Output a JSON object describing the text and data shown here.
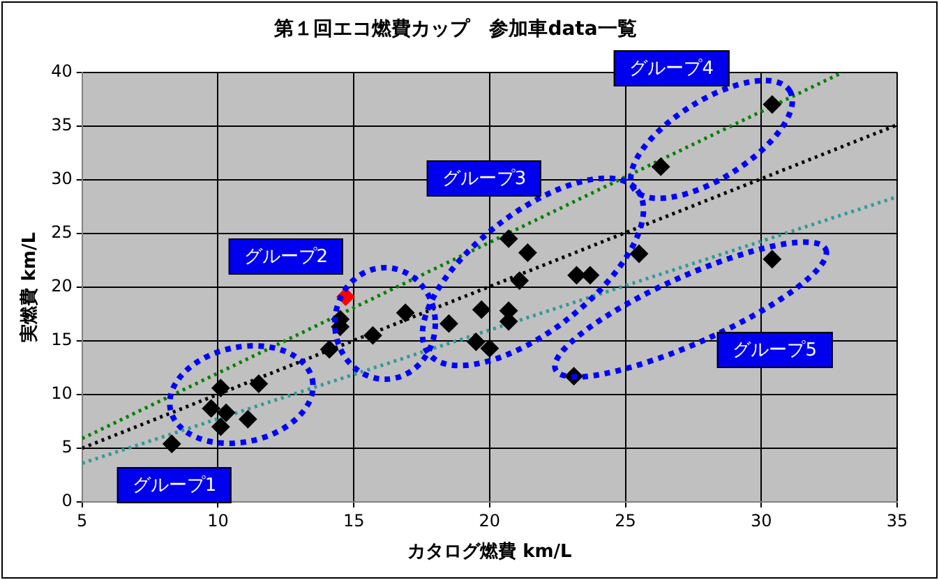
{
  "chart_data": {
    "type": "scatter",
    "title": "第１回エコ燃費カップ　参加車data一覧",
    "xlabel": "カタログ燃費 km/L",
    "ylabel": "実燃費 km/L",
    "xlim": [
      5,
      35
    ],
    "xticks": [
      5,
      10,
      15,
      20,
      25,
      30,
      35
    ],
    "ylim": [
      0,
      40
    ],
    "yticks": [
      0,
      5,
      10,
      15,
      20,
      25,
      30,
      35,
      40
    ],
    "grid": true,
    "marker": "diamond",
    "series": [
      {
        "x": [
          8.3,
          9.75,
          10.1,
          10.3,
          10.1,
          11.1,
          11.5,
          14.1,
          14.5,
          14.5,
          14.7,
          15.7,
          16.9,
          18.5,
          19.7,
          19.5,
          20.0,
          20.7,
          20.7,
          21.1,
          20.7,
          21.4,
          23.2,
          23.7,
          25.5,
          23.1,
          26.3,
          30.4,
          30.4
        ],
        "values": [
          5.4,
          8.7,
          10.6,
          8.3,
          7.0,
          7.7,
          11.0,
          14.2,
          16.3,
          17.0,
          19.1,
          15.5,
          17.6,
          16.6,
          17.9,
          14.9,
          14.3,
          17.8,
          16.8,
          20.6,
          24.5,
          23.2,
          21.1,
          21.1,
          23.1,
          11.7,
          31.2,
          37.0,
          22.6
        ],
        "colors": [
          "#000000",
          "#000000",
          "#000000",
          "#000000",
          "#000000",
          "#000000",
          "#000000",
          "#000000",
          "#000000",
          "#000000",
          "#ff0000",
          "#000000",
          "#000000",
          "#000000",
          "#000000",
          "#000000",
          "#000000",
          "#000000",
          "#000000",
          "#000000",
          "#000000",
          "#000000",
          "#000000",
          "#000000",
          "#000000",
          "#000000",
          "#000000",
          "#000000",
          "#000000"
        ]
      },
      {
        "type": "line",
        "color": "#008000",
        "line_style": "dotted",
        "marker": "none",
        "x": [
          5,
          33
        ],
        "values": [
          5.9,
          40
        ]
      },
      {
        "type": "line",
        "color": "#000000",
        "line_style": "dotted",
        "marker": "none",
        "x": [
          5,
          35
        ],
        "values": [
          5.0,
          35.1
        ]
      },
      {
        "type": "line",
        "color": "#339999",
        "line_style": "dotted",
        "marker": "none",
        "x": [
          5,
          35
        ],
        "values": [
          3.6,
          28.4
        ]
      }
    ],
    "annotations": [
      "グループ1",
      "グループ2",
      "グループ3",
      "グループ4",
      "グループ5"
    ]
  }
}
